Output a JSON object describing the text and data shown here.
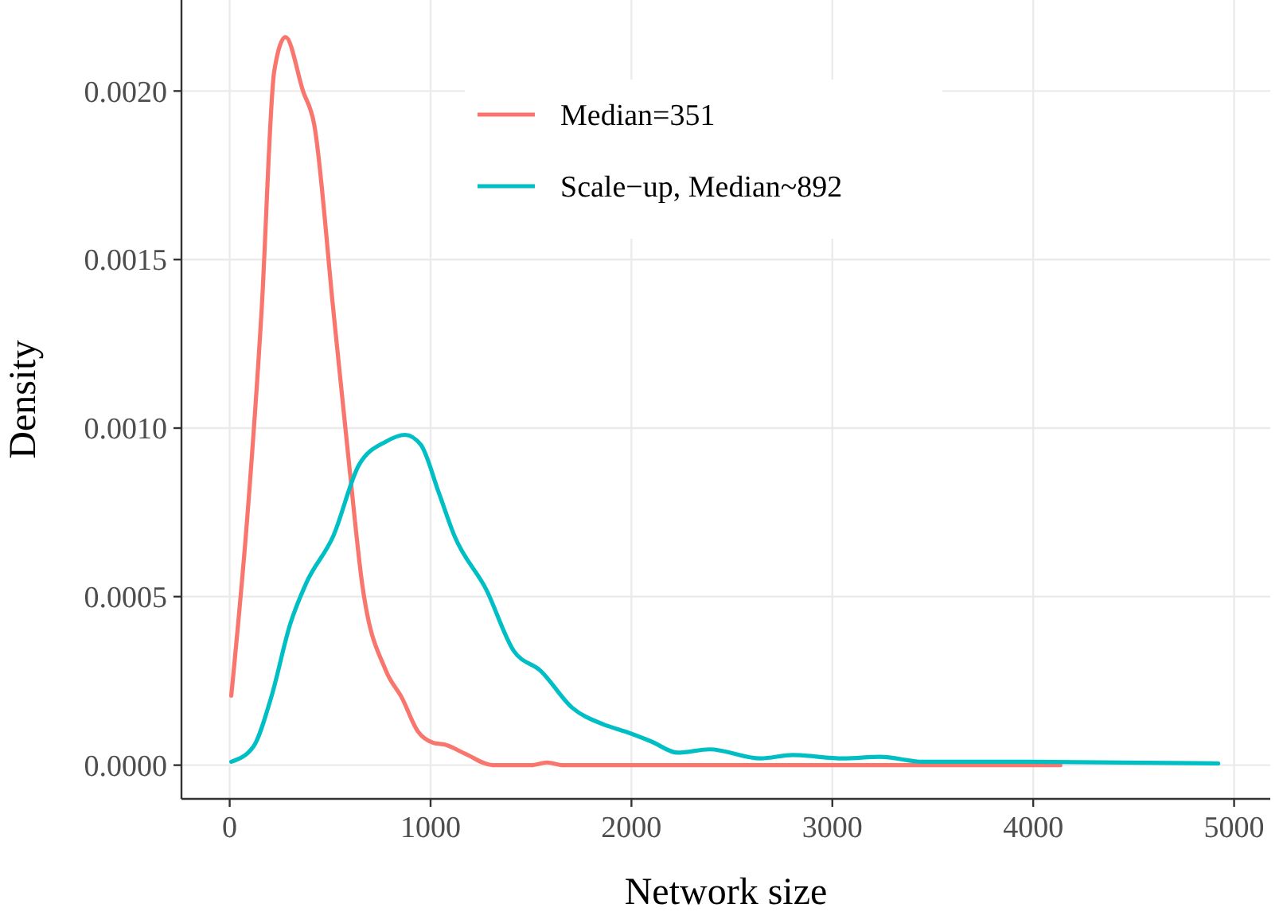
{
  "chart_data": {
    "type": "line",
    "xlabel": "Network size",
    "ylabel": "Density",
    "xlim": [
      -240,
      5180
    ],
    "ylim": [
      -0.0001,
      0.00227
    ],
    "xticks": [
      0,
      1000,
      2000,
      3000,
      4000,
      5000
    ],
    "yticks": [
      {
        "value": 0,
        "label": "0.0000"
      },
      {
        "value": 0.0005,
        "label": "0.0005"
      },
      {
        "value": 0.001,
        "label": "0.0010"
      },
      {
        "value": 0.0015,
        "label": "0.0015"
      },
      {
        "value": 0.002,
        "label": "0.0020"
      }
    ],
    "grid": true,
    "legend": "top",
    "marker": "none",
    "line_style": "solid",
    "series": [
      {
        "name": "Median=351",
        "color": "#f8766d",
        "x": [
          8,
          87,
          159,
          222,
          278,
          365,
          421,
          516,
          595,
          659,
          778,
          857,
          937,
          1016,
          1071,
          1175,
          1310,
          1500,
          1580,
          1660,
          2000,
          2500,
          3000,
          3500,
          4135
        ],
        "values": [
          0.000206,
          0.00073,
          0.00135,
          0.00206,
          0.00216,
          0.002,
          0.0019,
          0.00135,
          0.00089,
          0.00054,
          0.00028,
          0.0002,
          0.0001,
          6.6e-05,
          6.1e-05,
          3.3e-05,
          0,
          0,
          8e-06,
          0,
          0,
          0,
          0,
          0,
          0
        ]
      },
      {
        "name": "Scale−up, Median~892",
        "color": "#00bfc4",
        "x": [
          8,
          119,
          206,
          302,
          381,
          516,
          643,
          778,
          873,
          952,
          1040,
          1119,
          1278,
          1413,
          1548,
          1706,
          1865,
          1968,
          2100,
          2230,
          2389,
          2643,
          2802,
          3056,
          3238,
          3452,
          3976,
          4921
        ],
        "values": [
          1e-05,
          5.6e-05,
          0.0002,
          0.00042,
          0.00054,
          0.00068,
          0.00089,
          0.00096,
          0.00098,
          0.00095,
          0.00081,
          0.00068,
          0.00052,
          0.00034,
          0.00028,
          0.00017,
          0.00012,
          0.0001,
          7e-05,
          3.7e-05,
          4.7e-05,
          2e-05,
          3e-05,
          2e-05,
          2.5e-05,
          1e-05,
          1e-05,
          5e-06
        ]
      }
    ]
  }
}
